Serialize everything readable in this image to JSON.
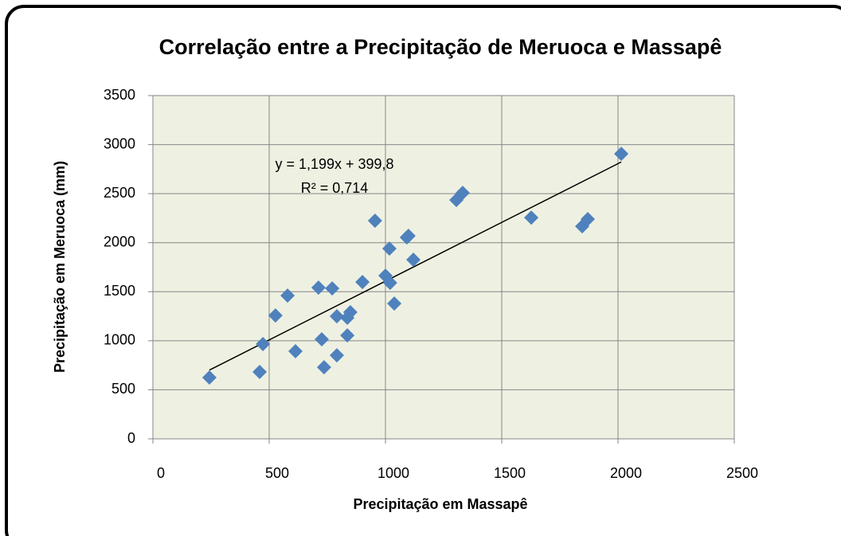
{
  "chart_data": {
    "type": "scatter",
    "title": "Correlação entre a Precipitação de Meruoca e Massapê",
    "xlabel": "Precipitação em Massapê",
    "ylabel": "Precipitação em Meruoca (mm)",
    "annotations": [
      "y = 1,199x + 399,8",
      "R² = 0,714"
    ],
    "trendline": true,
    "color": "#4f81bd",
    "grid": true,
    "xlim": [
      0,
      2500
    ],
    "xticks": [
      0,
      500,
      1000,
      1500,
      2000,
      2500
    ],
    "ylim": [
      0,
      3500
    ],
    "yticks": [
      0,
      500,
      1000,
      1500,
      2000,
      2500,
      3000,
      3500
    ],
    "x": [
      243,
      459,
      473,
      527,
      579,
      613,
      712,
      726,
      736,
      771,
      791,
      791,
      836,
      836,
      849,
      901,
      955,
      1000,
      1017,
      1020,
      1038,
      1092,
      1099,
      1120,
      1305,
      1332,
      1627,
      1846,
      1870,
      2014
    ],
    "y": [
      625,
      682,
      966,
      1258,
      1461,
      893,
      1542,
      1015,
      730,
      1534,
      1250,
      852,
      1234,
      1055,
      1291,
      1599,
      2224,
      1664,
      1940,
      1591,
      1380,
      2054,
      2070,
      1826,
      2435,
      2508,
      2256,
      2167,
      2240,
      2906
    ]
  }
}
